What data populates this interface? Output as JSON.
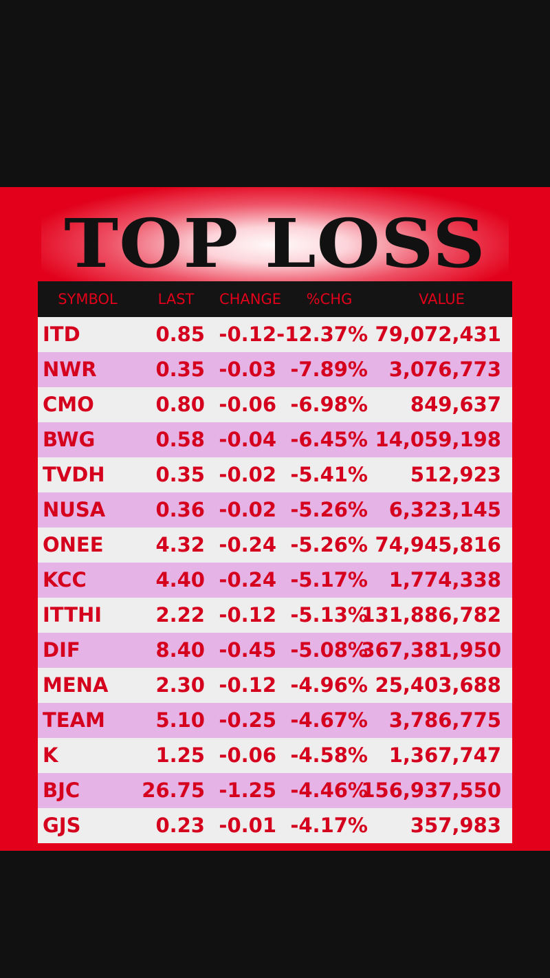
{
  "title": "TOP LOSS",
  "columns": {
    "symbol": "SYMBOL",
    "last": "LAST",
    "change": "CHANGE",
    "pct": "%CHG",
    "value": "VALUE"
  },
  "rows": [
    {
      "symbol": "ITD",
      "last": "0.85",
      "change": "-0.12",
      "pct": "-12.37%",
      "value": "79,072,431"
    },
    {
      "symbol": "NWR",
      "last": "0.35",
      "change": "-0.03",
      "pct": "-7.89%",
      "value": "3,076,773"
    },
    {
      "symbol": "CMO",
      "last": "0.80",
      "change": "-0.06",
      "pct": "-6.98%",
      "value": "849,637"
    },
    {
      "symbol": "BWG",
      "last": "0.58",
      "change": "-0.04",
      "pct": "-6.45%",
      "value": "14,059,198"
    },
    {
      "symbol": "TVDH",
      "last": "0.35",
      "change": "-0.02",
      "pct": "-5.41%",
      "value": "512,923"
    },
    {
      "symbol": "NUSA",
      "last": "0.36",
      "change": "-0.02",
      "pct": "-5.26%",
      "value": "6,323,145"
    },
    {
      "symbol": "ONEE",
      "last": "4.32",
      "change": "-0.24",
      "pct": "-5.26%",
      "value": "74,945,816"
    },
    {
      "symbol": "KCC",
      "last": "4.40",
      "change": "-0.24",
      "pct": "-5.17%",
      "value": "1,774,338"
    },
    {
      "symbol": "ITTHI",
      "last": "2.22",
      "change": "-0.12",
      "pct": "-5.13%",
      "value": "131,886,782"
    },
    {
      "symbol": "DIF",
      "last": "8.40",
      "change": "-0.45",
      "pct": "-5.08%",
      "value": "367,381,950"
    },
    {
      "symbol": "MENA",
      "last": "2.30",
      "change": "-0.12",
      "pct": "-4.96%",
      "value": "25,403,688"
    },
    {
      "symbol": "TEAM",
      "last": "5.10",
      "change": "-0.25",
      "pct": "-4.67%",
      "value": "3,786,775"
    },
    {
      "symbol": "K",
      "last": "1.25",
      "change": "-0.06",
      "pct": "-4.58%",
      "value": "1,367,747"
    },
    {
      "symbol": "BJC",
      "last": "26.75",
      "change": "-1.25",
      "pct": "-4.46%",
      "value": "156,937,550"
    },
    {
      "symbol": "GJS",
      "last": "0.23",
      "change": "-0.01",
      "pct": "-4.17%",
      "value": "357,983"
    }
  ],
  "colors": {
    "background": "#111111",
    "panel": "#e2001a",
    "row_light": "#eeeeee",
    "row_pink": "#e6b3e6",
    "text": "#d5001d"
  }
}
